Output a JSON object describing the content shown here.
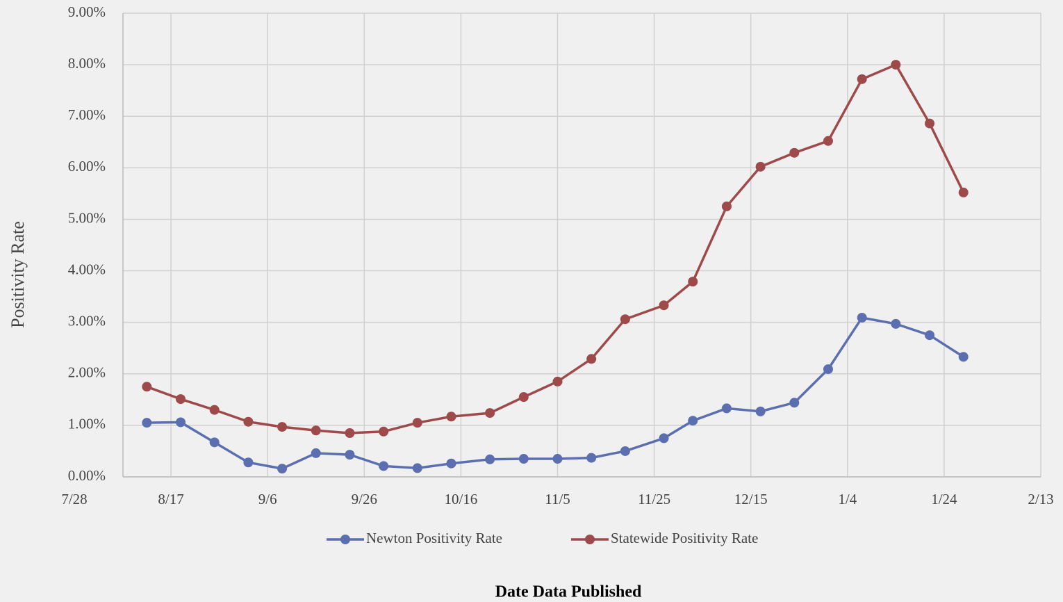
{
  "chart_data": {
    "type": "line",
    "x_label": "Date Data Published",
    "y_label": "Positivity Rate",
    "x": [
      "8/12",
      "8/19",
      "8/26",
      "9/2",
      "9/9",
      "9/16",
      "9/23",
      "9/30",
      "10/7",
      "10/14",
      "10/22",
      "10/29",
      "11/5",
      "11/12",
      "11/19",
      "11/27",
      "12/3",
      "12/10",
      "12/17",
      "12/24",
      "12/31",
      "1/7",
      "1/14",
      "1/21",
      "1/28"
    ],
    "series": [
      {
        "name": "Newton Positivity Rate",
        "color": "#5b6fb0",
        "values": [
          1.05,
          1.06,
          0.67,
          0.28,
          0.16,
          0.46,
          0.43,
          0.21,
          0.17,
          0.26,
          0.34,
          0.35,
          0.35,
          0.37,
          0.5,
          0.75,
          1.09,
          1.33,
          1.27,
          1.44,
          2.09,
          3.09,
          2.97,
          2.75,
          2.33
        ]
      },
      {
        "name": "Statewide Positivity Rate",
        "color": "#9e4a4a",
        "values": [
          1.75,
          1.51,
          1.3,
          1.07,
          0.97,
          0.9,
          0.85,
          0.88,
          1.05,
          1.17,
          1.24,
          1.55,
          1.85,
          2.29,
          3.06,
          3.33,
          3.79,
          5.25,
          6.02,
          6.29,
          6.52,
          7.72,
          8.0,
          6.86,
          5.52
        ]
      }
    ],
    "xlim": [
      "7/28",
      "2/13"
    ],
    "xticks": [
      "7/28",
      "8/17",
      "9/6",
      "9/26",
      "10/16",
      "11/5",
      "11/25",
      "12/15",
      "1/4",
      "1/24",
      "2/13"
    ],
    "ylim": [
      0,
      9
    ],
    "yticks": [
      {
        "value": 0,
        "label": "0.00%"
      },
      {
        "value": 1,
        "label": "1.00%"
      },
      {
        "value": 2,
        "label": "2.00%"
      },
      {
        "value": 3,
        "label": "3.00%"
      },
      {
        "value": 4,
        "label": "4.00%"
      },
      {
        "value": 5,
        "label": "5.00%"
      },
      {
        "value": 6,
        "label": "6.00%"
      },
      {
        "value": 7,
        "label": "7.00%"
      },
      {
        "value": 8,
        "label": "8.00%"
      },
      {
        "value": 9,
        "label": "9.00%"
      }
    ],
    "grid": true,
    "legend": "bottom"
  }
}
